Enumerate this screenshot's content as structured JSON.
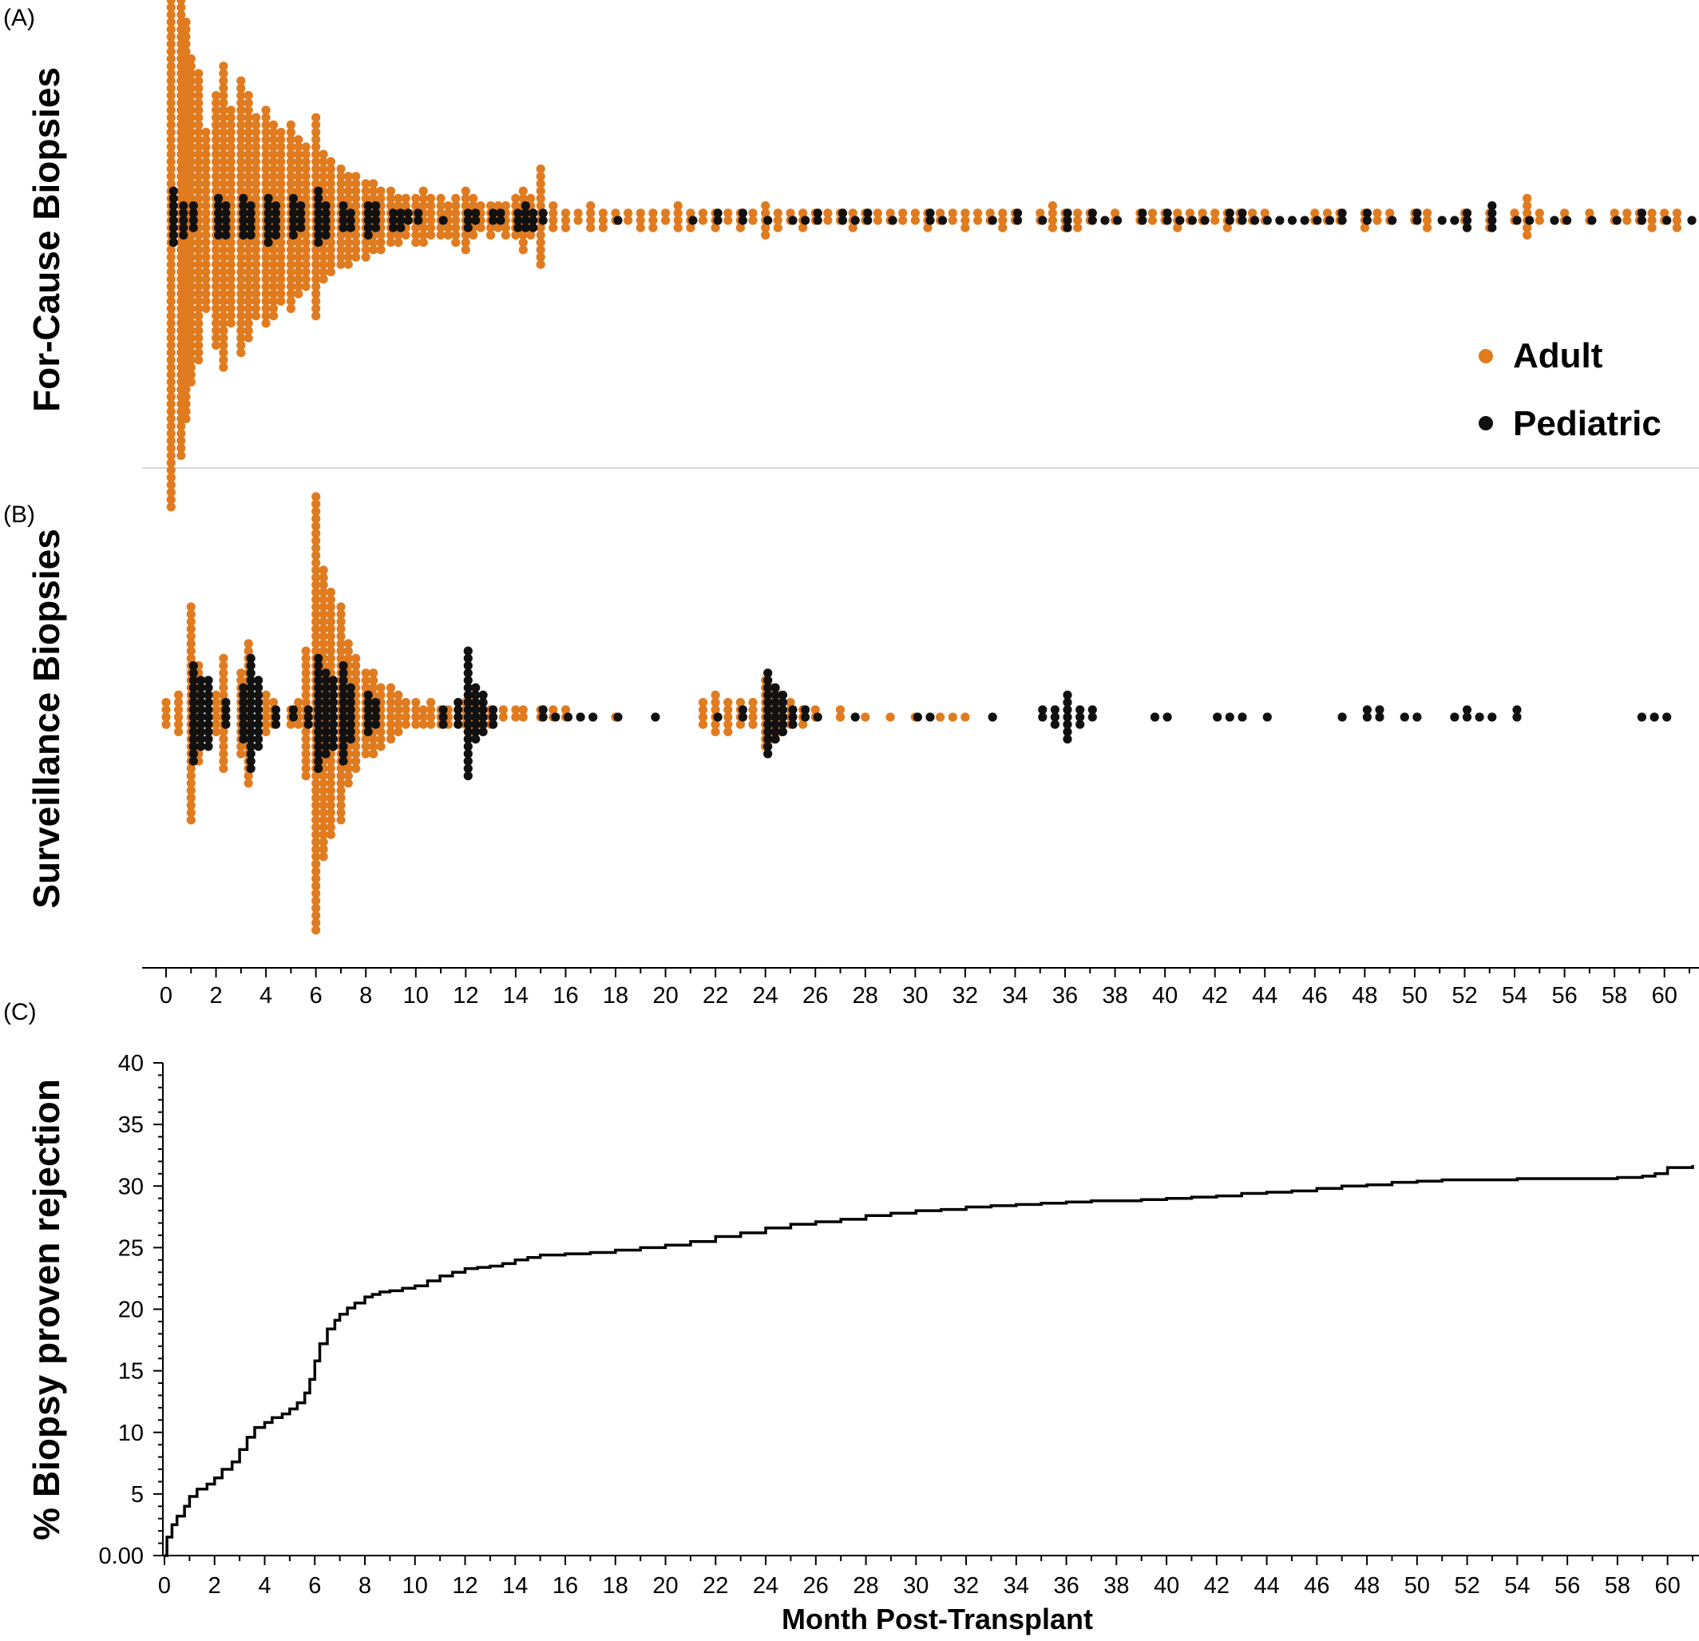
{
  "colors": {
    "adult": "#E07B1F",
    "pediatric": "#111111",
    "divider": "#d9d9d9",
    "axis": "#000000"
  },
  "panel_labels": {
    "a": "(A)",
    "b": "(B)",
    "c": "(C)"
  },
  "legend": {
    "adult": "Adult",
    "pediatric": "Pediatric"
  },
  "chart_data": [
    {
      "panel": "A",
      "type": "scatter",
      "subtype": "beeswarm",
      "ylabel": "For-Cause Biopsies",
      "xlim": [
        0,
        61
      ],
      "series": [
        {
          "name": "Adult",
          "x": [
            0.2,
            0.6,
            0.8,
            1.0,
            1.3,
            1.6,
            2.0,
            2.3,
            2.6,
            3.0,
            3.3,
            3.6,
            4.0,
            4.3,
            4.6,
            5.0,
            5.3,
            5.6,
            6.0,
            6.3,
            6.6,
            7.0,
            7.3,
            7.6,
            8.0,
            8.3,
            8.6,
            9.0,
            9.3,
            9.6,
            10.0,
            10.3,
            10.6,
            11.0,
            11.3,
            11.6,
            12.0,
            12.3,
            12.6,
            13.0,
            13.3,
            13.6,
            14.0,
            14.3,
            14.6,
            15.0,
            15.5,
            16.0,
            16.5,
            17.0,
            17.5,
            18.0,
            18.5,
            19.0,
            19.5,
            20.0,
            20.5,
            21.0,
            21.5,
            22.0,
            22.5,
            23.0,
            23.5,
            24.0,
            24.5,
            25.0,
            25.5,
            26.0,
            26.5,
            27.0,
            27.5,
            28.0,
            28.5,
            29.0,
            29.5,
            30.0,
            30.5,
            31.0,
            31.5,
            32.0,
            32.5,
            33.0,
            33.5,
            34.0,
            35.0,
            35.5,
            36.0,
            36.5,
            37.0,
            38.0,
            39.0,
            39.5,
            40.0,
            40.5,
            41.0,
            41.5,
            42.0,
            42.5,
            43.0,
            43.5,
            44.0,
            46.0,
            46.5,
            47.0,
            48.0,
            48.5,
            49.0,
            50.0,
            50.5,
            52.0,
            53.0,
            54.0,
            54.5,
            55.0,
            56.0,
            57.0,
            58.0,
            58.5,
            59.0,
            59.5,
            60.0,
            60.5
          ],
          "count": [
            80,
            65,
            55,
            45,
            40,
            25,
            35,
            42,
            30,
            38,
            34,
            28,
            30,
            27,
            24,
            26,
            22,
            20,
            28,
            18,
            16,
            14,
            13,
            12,
            11,
            10,
            9,
            8,
            7,
            6,
            7,
            8,
            6,
            6,
            5,
            7,
            9,
            6,
            4,
            5,
            4,
            5,
            6,
            9,
            6,
            14,
            4,
            3,
            2,
            4,
            3,
            2,
            2,
            3,
            3,
            2,
            4,
            3,
            2,
            3,
            2,
            3,
            2,
            5,
            3,
            2,
            3,
            2,
            2,
            2,
            3,
            2,
            2,
            2,
            2,
            2,
            3,
            2,
            2,
            3,
            2,
            2,
            3,
            2,
            2,
            4,
            3,
            3,
            2,
            2,
            2,
            2,
            2,
            3,
            2,
            2,
            2,
            3,
            2,
            2,
            2,
            2,
            2,
            2,
            3,
            2,
            2,
            2,
            3,
            2,
            3,
            2,
            6,
            2,
            2,
            2,
            2,
            2,
            2,
            3,
            2,
            3,
            2,
            2
          ]
        },
        {
          "name": "Pediatric",
          "x": [
            0.2,
            0.6,
            1.0,
            2.0,
            2.3,
            3.0,
            3.3,
            4.0,
            4.3,
            5.0,
            5.3,
            6.0,
            6.3,
            7.0,
            7.3,
            8.0,
            8.3,
            9.0,
            9.3,
            9.6,
            10.0,
            11.0,
            12.0,
            12.3,
            13.0,
            13.3,
            14.0,
            14.3,
            14.6,
            15.0,
            18.0,
            21.0,
            22.0,
            23.0,
            24.0,
            25.0,
            25.5,
            26.0,
            27.0,
            27.5,
            28.0,
            29.0,
            30.5,
            31.0,
            33.0,
            34.0,
            35.0,
            36.0,
            37.0,
            37.5,
            38.0,
            39.0,
            40.0,
            40.5,
            41.0,
            41.5,
            42.5,
            43.0,
            43.5,
            44.0,
            44.5,
            45.0,
            45.5,
            46.0,
            46.5,
            47.0,
            48.0,
            49.0,
            50.0,
            51.0,
            51.5,
            52.0,
            53.0,
            54.0,
            54.5,
            55.5,
            56.0,
            57.0,
            58.0,
            59.0,
            60.0,
            61.0
          ],
          "count": [
            8,
            5,
            4,
            6,
            5,
            6,
            5,
            7,
            5,
            6,
            4,
            8,
            5,
            4,
            3,
            5,
            4,
            3,
            3,
            2,
            2,
            1,
            3,
            2,
            2,
            2,
            3,
            4,
            3,
            2,
            1,
            1,
            2,
            2,
            1,
            1,
            1,
            2,
            2,
            1,
            2,
            1,
            2,
            1,
            1,
            2,
            1,
            3,
            2,
            1,
            1,
            2,
            2,
            1,
            1,
            1,
            2,
            2,
            1,
            1,
            1,
            1,
            1,
            1,
            1,
            2,
            2,
            1,
            2,
            1,
            1,
            3,
            4,
            1,
            1,
            1,
            1,
            1,
            1,
            2,
            1,
            1
          ]
        }
      ]
    },
    {
      "panel": "B",
      "type": "scatter",
      "subtype": "beeswarm",
      "ylabel": "Surveillance Biopsies",
      "xlim": [
        0,
        61
      ],
      "xticks": [
        0,
        2,
        4,
        6,
        8,
        10,
        12,
        14,
        16,
        18,
        20,
        22,
        24,
        26,
        28,
        30,
        32,
        34,
        36,
        38,
        40,
        42,
        44,
        46,
        48,
        50,
        52,
        54,
        56,
        58,
        60
      ],
      "series": [
        {
          "name": "Adult",
          "x": [
            0.0,
            0.5,
            1.0,
            1.3,
            2.0,
            2.3,
            3.0,
            3.3,
            4.0,
            4.3,
            5.0,
            5.3,
            5.6,
            6.0,
            6.3,
            6.6,
            7.0,
            7.3,
            7.6,
            8.0,
            8.3,
            8.6,
            9.0,
            9.3,
            9.6,
            10.0,
            10.3,
            10.6,
            11.0,
            11.3,
            12.0,
            12.3,
            12.6,
            13.0,
            13.5,
            14.0,
            14.3,
            15.0,
            15.5,
            16.0,
            18.0,
            21.5,
            22.0,
            22.5,
            23.0,
            23.5,
            24.0,
            24.3,
            24.6,
            25.0,
            25.5,
            26.0,
            27.0,
            28.0,
            29.0,
            30.0,
            31.0,
            31.5,
            32.0
          ],
          "count": [
            4,
            6,
            30,
            14,
            6,
            16,
            12,
            20,
            6,
            4,
            3,
            4,
            18,
            60,
            40,
            34,
            30,
            20,
            16,
            12,
            12,
            9,
            8,
            6,
            4,
            4,
            3,
            4,
            3,
            3,
            4,
            6,
            3,
            3,
            2,
            2,
            2,
            2,
            2,
            2,
            1,
            4,
            6,
            5,
            4,
            4,
            10,
            8,
            6,
            4,
            3,
            2,
            2,
            1,
            1,
            1,
            1,
            1,
            1
          ]
        },
        {
          "name": "Pediatric",
          "x": [
            1.0,
            1.3,
            1.6,
            2.3,
            3.0,
            3.3,
            3.6,
            4.3,
            5.0,
            5.6,
            6.0,
            6.3,
            6.6,
            7.0,
            7.3,
            8.0,
            8.3,
            11.0,
            11.6,
            12.0,
            12.3,
            12.6,
            13.0,
            15.0,
            15.5,
            16.0,
            16.5,
            17.0,
            18.0,
            19.5,
            22.0,
            23.0,
            24.0,
            24.3,
            24.6,
            25.0,
            25.5,
            26.0,
            27.5,
            30.0,
            30.5,
            33.0,
            35.0,
            35.5,
            36.0,
            36.5,
            37.0,
            39.5,
            40.0,
            42.0,
            42.5,
            43.0,
            44.0,
            47.0,
            48.0,
            48.5,
            49.5,
            50.0,
            51.5,
            52.0,
            52.5,
            53.0,
            54.0,
            59.0,
            59.5,
            60.0
          ],
          "count": [
            14,
            10,
            10,
            4,
            8,
            16,
            10,
            3,
            2,
            3,
            16,
            12,
            10,
            14,
            8,
            6,
            4,
            3,
            4,
            18,
            8,
            6,
            3,
            2,
            1,
            1,
            1,
            1,
            1,
            1,
            1,
            2,
            12,
            8,
            6,
            3,
            2,
            1,
            1,
            1,
            1,
            1,
            2,
            3,
            7,
            3,
            2,
            1,
            1,
            1,
            1,
            1,
            1,
            1,
            2,
            2,
            1,
            1,
            1,
            2,
            1,
            1,
            2,
            1,
            1,
            1
          ]
        }
      ]
    },
    {
      "panel": "C",
      "type": "line",
      "subtype": "step",
      "ylabel": "% Biopsy proven rejection",
      "xlabel": "Month Post-Transplant",
      "xlim": [
        0,
        61
      ],
      "ylim": [
        0,
        40
      ],
      "xticks": [
        0,
        2,
        4,
        6,
        8,
        10,
        12,
        14,
        16,
        18,
        20,
        22,
        24,
        26,
        28,
        30,
        32,
        34,
        36,
        38,
        40,
        42,
        44,
        46,
        48,
        50,
        52,
        54,
        56,
        58,
        60
      ],
      "yticks": [
        0,
        5,
        10,
        15,
        20,
        25,
        30,
        35,
        40
      ],
      "ytick_labels": [
        "0.00",
        "5",
        "10",
        "15",
        "20",
        "25",
        "30",
        "35",
        "40"
      ],
      "series": [
        {
          "x": [
            0,
            0.1,
            0.3,
            0.5,
            0.8,
            1.0,
            1.3,
            1.7,
            2.0,
            2.3,
            2.7,
            3.0,
            3.3,
            3.6,
            4.0,
            4.3,
            4.7,
            5.0,
            5.3,
            5.6,
            5.8,
            6.0,
            6.2,
            6.5,
            6.8,
            7.0,
            7.3,
            7.6,
            8.0,
            8.3,
            8.6,
            9.0,
            9.5,
            10.0,
            10.5,
            11.0,
            11.5,
            12.0,
            12.5,
            13.0,
            13.5,
            14.0,
            14.5,
            15.0,
            16.0,
            17.0,
            18.0,
            19.0,
            20.0,
            21.0,
            22.0,
            23.0,
            24.0,
            25.0,
            26.0,
            27.0,
            28.0,
            29.0,
            30.0,
            31.0,
            32.0,
            33.0,
            34.0,
            35.0,
            36.0,
            37.0,
            38.0,
            39.0,
            40.0,
            41.0,
            42.0,
            43.0,
            44.0,
            45.0,
            46.0,
            47.0,
            48.0,
            49.0,
            50.0,
            51.0,
            52.0,
            53.0,
            54.0,
            55.0,
            56.0,
            57.0,
            58.0,
            59.0,
            59.5,
            60.0,
            61.0
          ],
          "y": [
            0,
            1.5,
            2.5,
            3.2,
            4.0,
            4.8,
            5.4,
            5.8,
            6.3,
            7.0,
            7.6,
            8.6,
            9.6,
            10.4,
            10.8,
            11.2,
            11.5,
            11.9,
            12.4,
            13.2,
            14.3,
            15.8,
            17.2,
            18.4,
            19.1,
            19.6,
            20.1,
            20.5,
            21.0,
            21.2,
            21.4,
            21.5,
            21.7,
            21.9,
            22.3,
            22.7,
            23.0,
            23.3,
            23.4,
            23.5,
            23.7,
            24.0,
            24.2,
            24.4,
            24.5,
            24.6,
            24.8,
            25.0,
            25.2,
            25.5,
            25.9,
            26.2,
            26.6,
            26.9,
            27.1,
            27.3,
            27.6,
            27.8,
            28.0,
            28.1,
            28.3,
            28.4,
            28.5,
            28.6,
            28.7,
            28.8,
            28.8,
            28.9,
            29.0,
            29.1,
            29.2,
            29.4,
            29.5,
            29.6,
            29.8,
            30.0,
            30.1,
            30.3,
            30.4,
            30.5,
            30.5,
            30.5,
            30.6,
            30.6,
            30.6,
            30.6,
            30.7,
            30.8,
            31.0,
            31.5,
            31.7
          ]
        }
      ]
    }
  ]
}
